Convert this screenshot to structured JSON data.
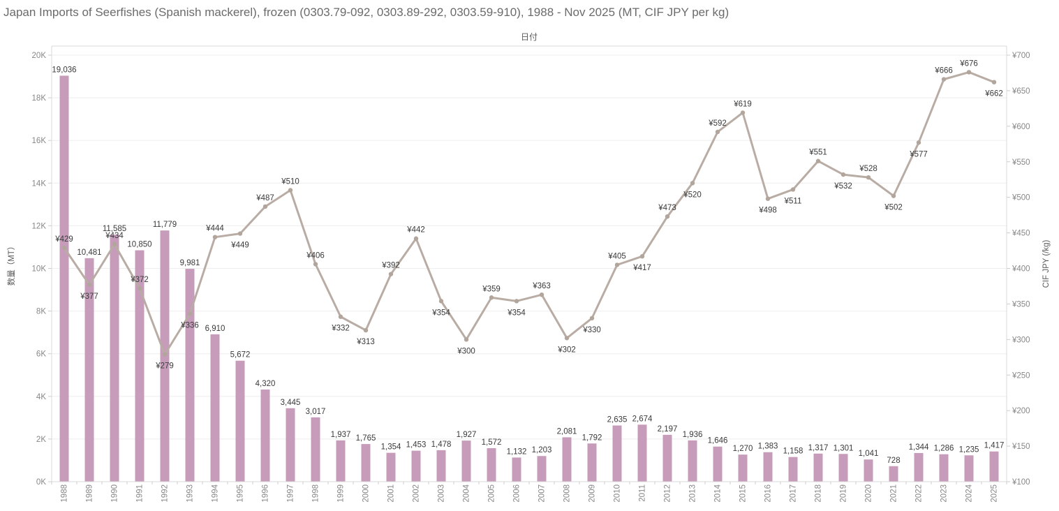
{
  "title": "Japan Imports of Seerfishes (Spanish mackerel), frozen (0303.79-092, 0303.89-292, 0303.59-910), 1988 - Nov 2025 (MT, CIF JPY per kg)",
  "axes": {
    "x_title": "日付",
    "y_left_title": "数量（MT）",
    "y_right_title": "CIF JPY (/kg)"
  },
  "chart_data": {
    "type": "bar",
    "subtype": "bar+line dual axis",
    "title": "Japan Imports of Seerfishes (Spanish mackerel), frozen (0303.79-092, 0303.89-292, 0303.59-910), 1988 - Nov 2025 (MT, CIF JPY per kg)",
    "xlabel": "日付",
    "ylabel_left": "数量（MT）",
    "ylabel_right": "CIF JPY (/kg)",
    "ylim_left": [
      0,
      20000
    ],
    "ylim_right": [
      100,
      700
    ],
    "grid": "horizontal",
    "legend": "none",
    "y_left_ticks": [
      "0K",
      "2K",
      "4K",
      "6K",
      "8K",
      "10K",
      "12K",
      "14K",
      "16K",
      "18K",
      "20K"
    ],
    "y_right_ticks": [
      "¥100",
      "¥150",
      "¥200",
      "¥250",
      "¥300",
      "¥350",
      "¥400",
      "¥450",
      "¥500",
      "¥550",
      "¥600",
      "¥650",
      "¥700"
    ],
    "categories": [
      "1988",
      "1989",
      "1990",
      "1991",
      "1992",
      "1993",
      "1994",
      "1995",
      "1996",
      "1997",
      "1998",
      "1999",
      "2000",
      "2001",
      "2002",
      "2003",
      "2004",
      "2005",
      "2006",
      "2007",
      "2008",
      "2009",
      "2010",
      "2011",
      "2012",
      "2013",
      "2014",
      "2015",
      "2016",
      "2017",
      "2018",
      "2019",
      "2020",
      "2021",
      "2022",
      "2023",
      "2024",
      "2025"
    ],
    "series": [
      {
        "name": "数量 (MT)",
        "type": "bar",
        "axis": "left",
        "color": "#c69cba",
        "values": [
          19036,
          10481,
          11585,
          10850,
          11779,
          9981,
          6910,
          5672,
          4320,
          3445,
          3017,
          1937,
          1765,
          1354,
          1453,
          1478,
          1927,
          1572,
          1132,
          1203,
          2081,
          1792,
          2635,
          2674,
          2197,
          1936,
          1646,
          1270,
          1383,
          1158,
          1317,
          1301,
          1041,
          728,
          1344,
          1286,
          1235,
          1417
        ]
      },
      {
        "name": "CIF JPY (/kg)",
        "type": "line",
        "axis": "right",
        "color": "#b8aca4",
        "marker_color": "#b2a59c",
        "currency_prefix": "¥",
        "values": [
          429,
          377,
          434,
          372,
          279,
          336,
          444,
          449,
          487,
          510,
          406,
          332,
          313,
          392,
          442,
          354,
          300,
          359,
          354,
          363,
          302,
          330,
          405,
          417,
          473,
          520,
          592,
          619,
          498,
          511,
          551,
          532,
          528,
          502,
          577,
          666,
          676,
          662
        ],
        "label_below": [
          false,
          true,
          false,
          false,
          true,
          true,
          false,
          true,
          false,
          false,
          false,
          true,
          true,
          false,
          false,
          true,
          true,
          false,
          true,
          false,
          true,
          true,
          false,
          true,
          false,
          true,
          false,
          false,
          true,
          true,
          false,
          true,
          false,
          true,
          true,
          false,
          false,
          true
        ]
      }
    ]
  }
}
